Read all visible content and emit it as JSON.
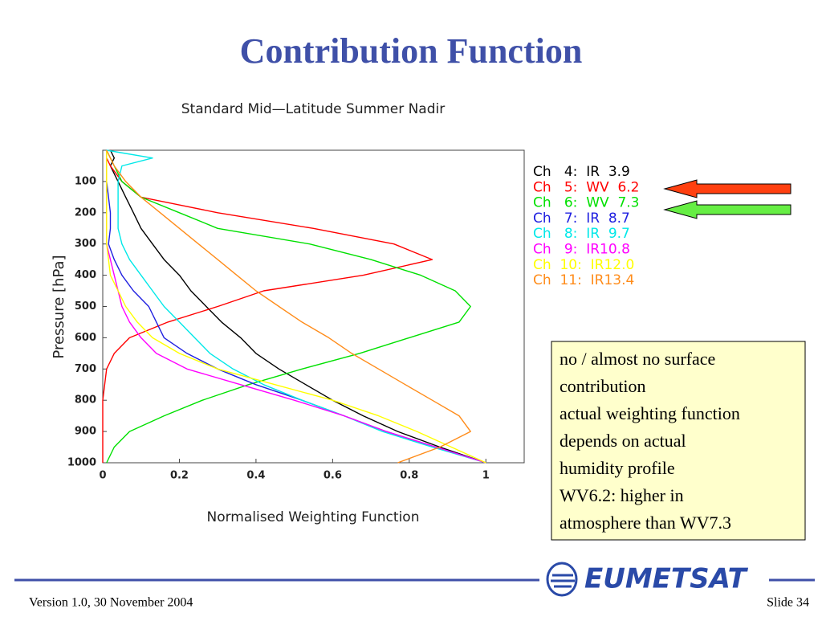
{
  "slide_title": "Contribution Function",
  "chart_data": {
    "type": "line",
    "title": "Standard Mid—Latitude Summer Nadir",
    "x_label": "Normalised Weighting Function",
    "y_label": "Pressure [hPa]",
    "y": [
      0,
      25,
      50,
      100,
      150,
      200,
      250,
      300,
      350,
      400,
      450,
      500,
      550,
      600,
      650,
      700,
      750,
      800,
      850,
      900,
      950,
      1000
    ],
    "series": [
      {
        "name": "Ch   4:  IR  3.9",
        "color": "#000000",
        "values": [
          0.02,
          0.03,
          0.02,
          0.04,
          0.06,
          0.08,
          0.1,
          0.13,
          0.16,
          0.2,
          0.23,
          0.27,
          0.31,
          0.36,
          0.4,
          0.46,
          0.53,
          0.6,
          0.68,
          0.77,
          0.88,
          1
        ]
      },
      {
        "name": "Ch   5:  WV  6.2",
        "color": "#ff0000",
        "values": [
          0.01,
          0.01,
          0.02,
          0.05,
          0.1,
          0.3,
          0.55,
          0.76,
          0.86,
          0.68,
          0.42,
          0.3,
          0.17,
          0.07,
          0.03,
          0.01,
          0.005,
          0,
          0,
          0,
          0,
          0
        ]
      },
      {
        "name": "Ch   6:  WV  7.3",
        "color": "#00e000",
        "values": [
          0.01,
          0.02,
          0.03,
          0.05,
          0.1,
          0.2,
          0.3,
          0.54,
          0.7,
          0.83,
          0.92,
          0.96,
          0.93,
          0.8,
          0.67,
          0.52,
          0.38,
          0.26,
          0.16,
          0.07,
          0.03,
          0.01
        ]
      },
      {
        "name": "Ch   7:  IR  8.7",
        "color": "#2020e0",
        "values": [
          0.01,
          0.01,
          0.01,
          0.01,
          0.015,
          0.02,
          0.02,
          0.015,
          0.03,
          0.05,
          0.08,
          0.12,
          0.14,
          0.16,
          0.22,
          0.3,
          0.4,
          0.52,
          0.63,
          0.74,
          0.87,
          1
        ]
      },
      {
        "name": "Ch   8:  IR  9.7",
        "color": "#00e8e8",
        "values": [
          0.01,
          0.13,
          0.05,
          0.04,
          0.04,
          0.04,
          0.04,
          0.05,
          0.07,
          0.1,
          0.13,
          0.16,
          0.2,
          0.24,
          0.28,
          0.34,
          0.42,
          0.52,
          0.63,
          0.73,
          0.86,
          1
        ]
      },
      {
        "name": "Ch   9:  IR10.8",
        "color": "#ff00ff",
        "values": [
          0.01,
          0.01,
          0.01,
          0.01,
          0.01,
          0.01,
          0.01,
          0.01,
          0.02,
          0.03,
          0.04,
          0.05,
          0.07,
          0.1,
          0.14,
          0.22,
          0.36,
          0.5,
          0.63,
          0.74,
          0.87,
          1
        ]
      },
      {
        "name": "Ch  10:  IR12.0",
        "color": "#ffff00",
        "values": [
          0.01,
          0.01,
          0.01,
          0.01,
          0.01,
          0.01,
          0.01,
          0.01,
          0.015,
          0.02,
          0.04,
          0.06,
          0.09,
          0.13,
          0.2,
          0.3,
          0.45,
          0.6,
          0.72,
          0.82,
          0.91,
          1
        ]
      },
      {
        "name": "Ch  11:  IR13.4",
        "color": "#ff8c1a",
        "values": [
          0.01,
          0.02,
          0.03,
          0.06,
          0.1,
          0.15,
          0.2,
          0.25,
          0.3,
          0.35,
          0.4,
          0.46,
          0.52,
          0.59,
          0.65,
          0.72,
          0.79,
          0.86,
          0.93,
          0.96,
          0.88,
          0.77
        ]
      }
    ],
    "xlim": [
      0,
      1.1
    ],
    "xticks": [
      0,
      0.2,
      0.4,
      0.6,
      0.8,
      1
    ],
    "ylim": [
      1000,
      0
    ],
    "yticks": [
      100,
      200,
      300,
      400,
      500,
      600,
      700,
      800,
      900,
      1000
    ],
    "grid": false
  },
  "note": [
    "no / almost no surface",
    "contribution",
    "actual weighting function",
    "depends on actual",
    "humidity profile",
    "WV6.2: higher in",
    "atmosphere than WV7.3"
  ],
  "footer": {
    "version": "Version 1.0, 30 November 2004",
    "slide": "Slide 34",
    "logo": "EUMETSAT"
  }
}
